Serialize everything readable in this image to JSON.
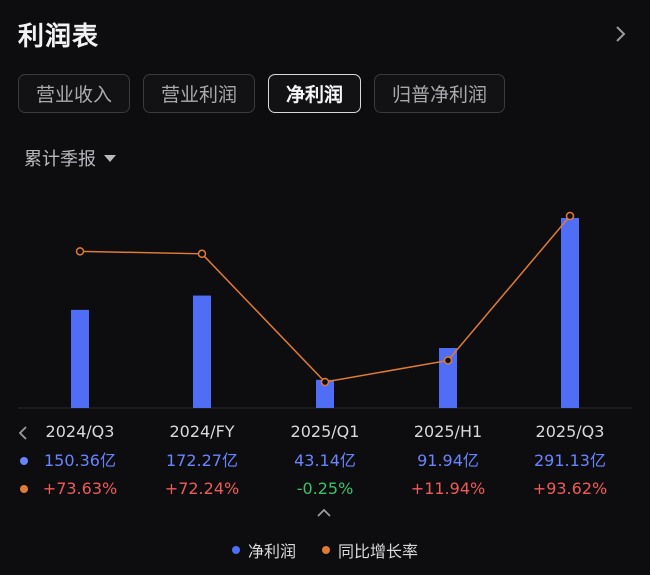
{
  "header": {
    "title": "利润表",
    "more_icon": "chevron-right-icon"
  },
  "tabs": [
    {
      "label": "营业收入",
      "active": false
    },
    {
      "label": "营业利润",
      "active": false
    },
    {
      "label": "净利润",
      "active": true
    },
    {
      "label": "归普净利润",
      "active": false
    }
  ],
  "period_selector": {
    "label": "累计季报",
    "icon": "triangle-down-icon"
  },
  "colors": {
    "bar": "#4f6ef5",
    "line": "#e07a35",
    "positive": "#ee5a5a",
    "negative": "#3cc06a",
    "value": "#6a84ff"
  },
  "chart_data": {
    "type": "bar",
    "categories": [
      "2024/Q3",
      "2024/FY",
      "2025/Q1",
      "2025/H1",
      "2025/Q3"
    ],
    "series": [
      {
        "name": "净利润",
        "type": "bar",
        "values": [
          150.36,
          172.27,
          43.14,
          91.94,
          291.13
        ],
        "labels": [
          "150.36亿",
          "172.27亿",
          "43.14亿",
          "91.94亿",
          "291.13亿"
        ]
      },
      {
        "name": "同比增长率",
        "type": "line",
        "values": [
          73.63,
          72.24,
          -0.25,
          11.94,
          93.62
        ],
        "labels": [
          "+73.63%",
          "+72.24%",
          "-0.25%",
          "+11.94%",
          "+93.62%"
        ]
      }
    ],
    "ylim": [
      0,
      291.13
    ],
    "y2lim": [
      -0.25,
      93.62
    ],
    "legend": "bottom-center"
  },
  "legend": [
    {
      "label": "净利润",
      "color": "#4f6ef5"
    },
    {
      "label": "同比增长率",
      "color": "#e07a35"
    }
  ]
}
